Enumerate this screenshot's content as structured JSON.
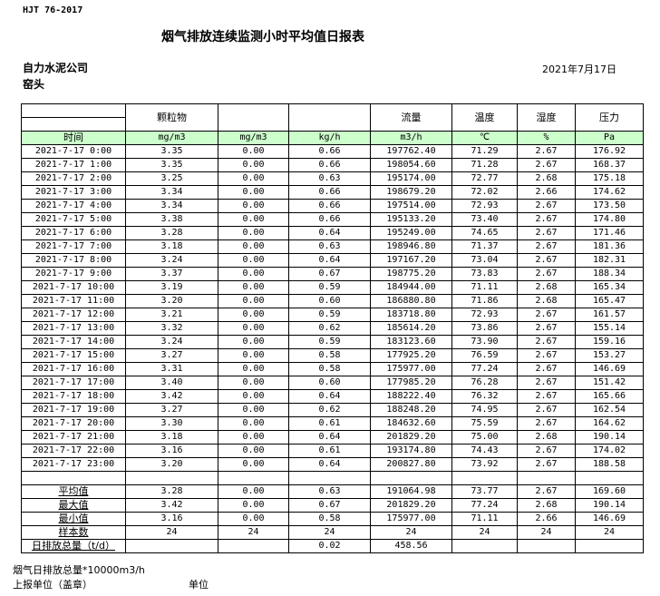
{
  "header": {
    "standard": "HJT  76-2017",
    "title": "烟气排放连续监测小时平均值日报表",
    "company": "自力水泥公司",
    "location": "窑头",
    "date": "2021年7月17日"
  },
  "table": {
    "columns": [
      "",
      "颗粒物",
      "",
      "",
      "流量",
      "温度",
      "湿度",
      "压力"
    ],
    "units": [
      "时间",
      "mg/m3",
      "mg/m3",
      "kg/h",
      "m3/h",
      "℃",
      "%",
      "Pa"
    ],
    "rows": [
      [
        "2021-7-17 0:00",
        "3.35",
        "0.00",
        "0.66",
        "197762.40",
        "71.29",
        "2.67",
        "176.92"
      ],
      [
        "2021-7-17 1:00",
        "3.35",
        "0.00",
        "0.66",
        "198054.60",
        "71.28",
        "2.67",
        "168.37"
      ],
      [
        "2021-7-17 2:00",
        "3.25",
        "0.00",
        "0.63",
        "195174.00",
        "72.77",
        "2.68",
        "175.18"
      ],
      [
        "2021-7-17 3:00",
        "3.34",
        "0.00",
        "0.66",
        "198679.20",
        "72.02",
        "2.66",
        "174.62"
      ],
      [
        "2021-7-17 4:00",
        "3.34",
        "0.00",
        "0.66",
        "197514.00",
        "72.93",
        "2.67",
        "173.50"
      ],
      [
        "2021-7-17 5:00",
        "3.38",
        "0.00",
        "0.66",
        "195133.20",
        "73.40",
        "2.67",
        "174.80"
      ],
      [
        "2021-7-17 6:00",
        "3.28",
        "0.00",
        "0.64",
        "195249.00",
        "74.65",
        "2.67",
        "171.46"
      ],
      [
        "2021-7-17 7:00",
        "3.18",
        "0.00",
        "0.63",
        "198946.80",
        "71.37",
        "2.67",
        "181.36"
      ],
      [
        "2021-7-17 8:00",
        "3.24",
        "0.00",
        "0.64",
        "197167.20",
        "73.04",
        "2.67",
        "182.31"
      ],
      [
        "2021-7-17 9:00",
        "3.37",
        "0.00",
        "0.67",
        "198775.20",
        "73.83",
        "2.67",
        "188.34"
      ],
      [
        "2021-7-17 10:00",
        "3.19",
        "0.00",
        "0.59",
        "184944.00",
        "71.11",
        "2.68",
        "165.34"
      ],
      [
        "2021-7-17 11:00",
        "3.20",
        "0.00",
        "0.60",
        "186880.80",
        "71.86",
        "2.68",
        "165.47"
      ],
      [
        "2021-7-17 12:00",
        "3.21",
        "0.00",
        "0.59",
        "183718.80",
        "72.93",
        "2.67",
        "161.57"
      ],
      [
        "2021-7-17 13:00",
        "3.32",
        "0.00",
        "0.62",
        "185614.20",
        "73.86",
        "2.67",
        "155.14"
      ],
      [
        "2021-7-17 14:00",
        "3.24",
        "0.00",
        "0.59",
        "183123.60",
        "73.90",
        "2.67",
        "159.16"
      ],
      [
        "2021-7-17 15:00",
        "3.27",
        "0.00",
        "0.58",
        "177925.20",
        "76.59",
        "2.67",
        "153.27"
      ],
      [
        "2021-7-17 16:00",
        "3.31",
        "0.00",
        "0.58",
        "175977.00",
        "77.24",
        "2.67",
        "146.69"
      ],
      [
        "2021-7-17 17:00",
        "3.40",
        "0.00",
        "0.60",
        "177985.20",
        "76.28",
        "2.67",
        "151.42"
      ],
      [
        "2021-7-17 18:00",
        "3.42",
        "0.00",
        "0.64",
        "188222.40",
        "76.32",
        "2.67",
        "165.66"
      ],
      [
        "2021-7-17 19:00",
        "3.27",
        "0.00",
        "0.62",
        "188248.20",
        "74.95",
        "2.67",
        "162.54"
      ],
      [
        "2021-7-17 20:00",
        "3.30",
        "0.00",
        "0.61",
        "184632.60",
        "75.59",
        "2.67",
        "164.62"
      ],
      [
        "2021-7-17 21:00",
        "3.18",
        "0.00",
        "0.64",
        "201829.20",
        "75.00",
        "2.68",
        "190.14"
      ],
      [
        "2021-7-17 22:00",
        "3.16",
        "0.00",
        "0.61",
        "193174.80",
        "74.43",
        "2.67",
        "174.02"
      ],
      [
        "2021-7-17 23:00",
        "3.20",
        "0.00",
        "0.64",
        "200827.80",
        "73.92",
        "2.67",
        "188.58"
      ]
    ],
    "summary": [
      [
        "平均值",
        "3.28",
        "0.00",
        "0.63",
        "191064.98",
        "73.77",
        "2.67",
        "169.60"
      ],
      [
        "最大值",
        "3.42",
        "0.00",
        "0.67",
        "201829.20",
        "77.24",
        "2.68",
        "190.14"
      ],
      [
        "最小值",
        "3.16",
        "0.00",
        "0.58",
        "175977.00",
        "71.11",
        "2.66",
        "146.69"
      ],
      [
        "样本数",
        "24",
        "24",
        "24",
        "24",
        "24",
        "24",
        "24"
      ],
      [
        "日排放总量（t/d）",
        "",
        "",
        "0.02",
        "458.56",
        "",
        "",
        ""
      ]
    ]
  },
  "footer": {
    "total_note": "烟气日排放总量*10000m3/h",
    "reporter": "上报单位（盖章）",
    "unit": "单位"
  }
}
